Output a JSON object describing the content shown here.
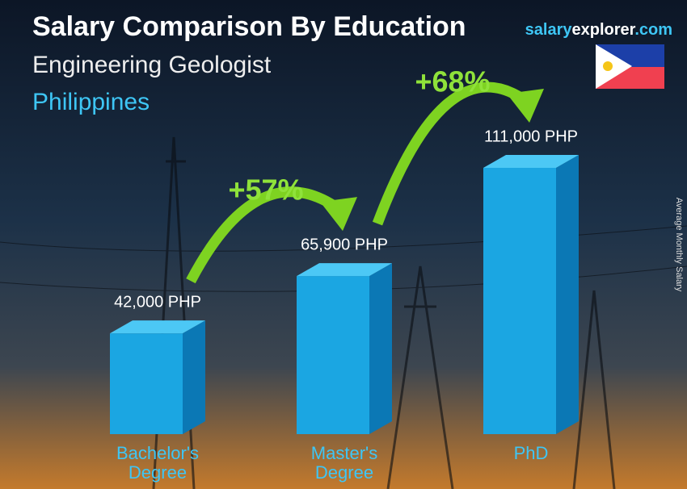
{
  "chart_data": {
    "type": "bar",
    "title": "Salary Comparison By Education",
    "subtitle": "Engineering Geologist",
    "location": "Philippines",
    "brand": [
      "salary",
      "explorer",
      ".com"
    ],
    "y_label": "Average Monthly Salary",
    "categories": [
      "Bachelor's Degree",
      "Master's Degree",
      "PhD"
    ],
    "values": [
      42000,
      65900,
      111000
    ],
    "value_labels": [
      "42,000 PHP",
      "65,900 PHP",
      "111,000 PHP"
    ],
    "color": "#1ba6e2",
    "annotations": [
      "+57%",
      "+68%"
    ]
  }
}
